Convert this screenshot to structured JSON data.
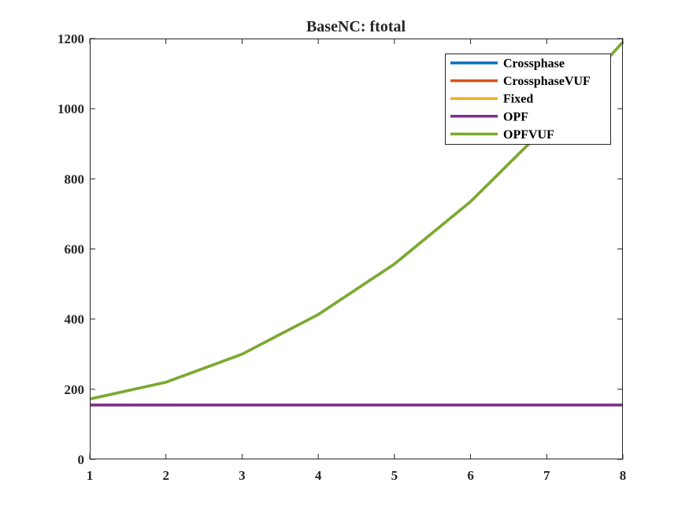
{
  "chart_data": {
    "type": "line",
    "title": "BaseNC: ftotal",
    "xlabel": "",
    "ylabel": "",
    "xlim": [
      1,
      8
    ],
    "ylim": [
      0,
      1200
    ],
    "xticks": [
      "1",
      "2",
      "3",
      "4",
      "5",
      "6",
      "7",
      "8"
    ],
    "yticks": [
      "0",
      "200",
      "400",
      "600",
      "800",
      "1000",
      "1200"
    ],
    "x": [
      1,
      2,
      3,
      4,
      5,
      6,
      7,
      8
    ],
    "grid": false,
    "legend_position": "top-right",
    "series": [
      {
        "name": "Crossphase",
        "color": "#0072BD",
        "values": [
          155,
          155,
          155,
          155,
          155,
          155,
          155,
          155
        ]
      },
      {
        "name": "CrossphaseVUF",
        "color": "#D95319",
        "values": [
          172,
          220,
          300,
          413,
          557,
          735,
          950,
          1190
        ]
      },
      {
        "name": "Fixed",
        "color": "#EDB120",
        "values": [
          155,
          155,
          155,
          155,
          155,
          155,
          155,
          155
        ]
      },
      {
        "name": "OPF",
        "color": "#7E2F8E",
        "values": [
          155,
          155,
          155,
          155,
          155,
          155,
          155,
          155
        ]
      },
      {
        "name": "OPFVUF",
        "color": "#77AC30",
        "values": [
          172,
          220,
          300,
          413,
          557,
          735,
          950,
          1190
        ]
      }
    ]
  }
}
